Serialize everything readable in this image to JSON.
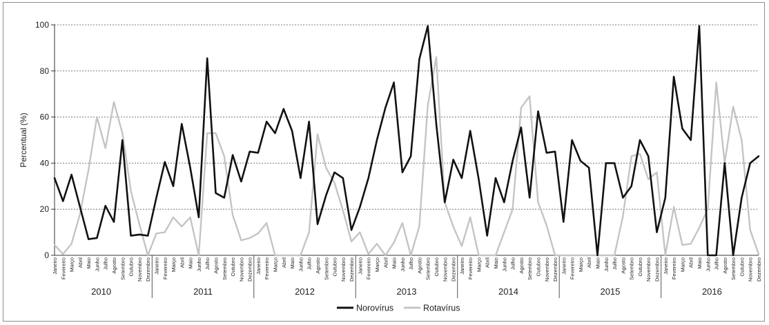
{
  "chart_data": {
    "type": "line",
    "ylabel": "Percentual (%)",
    "xlabel": "",
    "ylim": [
      0,
      100
    ],
    "yticks": [
      0,
      20,
      40,
      60,
      80,
      100
    ],
    "grid": "horizontal dotted",
    "legend_position": "bottom-center",
    "years": [
      "2010",
      "2011",
      "2012",
      "2013",
      "2014",
      "2015",
      "2016"
    ],
    "months": [
      "Janeiro",
      "Fevereiro",
      "Março",
      "Abril",
      "Maio",
      "Junho",
      "Julho",
      "Agosto",
      "Setembro",
      "Outubro",
      "Novembro",
      "Dezembro"
    ],
    "series": [
      {
        "name": "Norovírus",
        "color": "#111111",
        "values": [
          33.5,
          23.5,
          35,
          21,
          7,
          7.5,
          21.5,
          14.5,
          50,
          8.5,
          9,
          8.5,
          25,
          40.5,
          30,
          57,
          38,
          16.5,
          85.5,
          27,
          25,
          43.5,
          32,
          45,
          44.5,
          58,
          53,
          63.5,
          54,
          33.5,
          58,
          13.5,
          26,
          36,
          33.5,
          11,
          21,
          33.5,
          50,
          64,
          75,
          36,
          43,
          85,
          99.5,
          57,
          23,
          41.5,
          33.5,
          54,
          33,
          8.5,
          33.5,
          23,
          41,
          55.5,
          25,
          62.5,
          44.5,
          45,
          14.5,
          50,
          41,
          38,
          0,
          40,
          40,
          25,
          30,
          50,
          43,
          10,
          25,
          77.5,
          55,
          50,
          99.5,
          0,
          0,
          40,
          0,
          25,
          40,
          43
        ]
      },
      {
        "name": "Rotavírus",
        "color": "#c4c4c4",
        "values": [
          4.5,
          0.5,
          5,
          18,
          37,
          60,
          46.5,
          66.5,
          53,
          28,
          13.5,
          0,
          9.5,
          10,
          16.5,
          12.5,
          16.5,
          0,
          53,
          53,
          43,
          17.5,
          6.5,
          7.5,
          9.5,
          14,
          0,
          0,
          0,
          0,
          10,
          52.5,
          38,
          31.5,
          19.5,
          6,
          10,
          0.5,
          5,
          0,
          5.5,
          14,
          0,
          12.5,
          65,
          86,
          23,
          12.5,
          4,
          16.5,
          0,
          0,
          0,
          10,
          20,
          64,
          69,
          23,
          13,
          0,
          0,
          0,
          0,
          0,
          0,
          0,
          0,
          17,
          43,
          44,
          33,
          36,
          0,
          21,
          4.5,
          5,
          12,
          20,
          75,
          40,
          64.5,
          50,
          11,
          0.5
        ]
      }
    ]
  }
}
